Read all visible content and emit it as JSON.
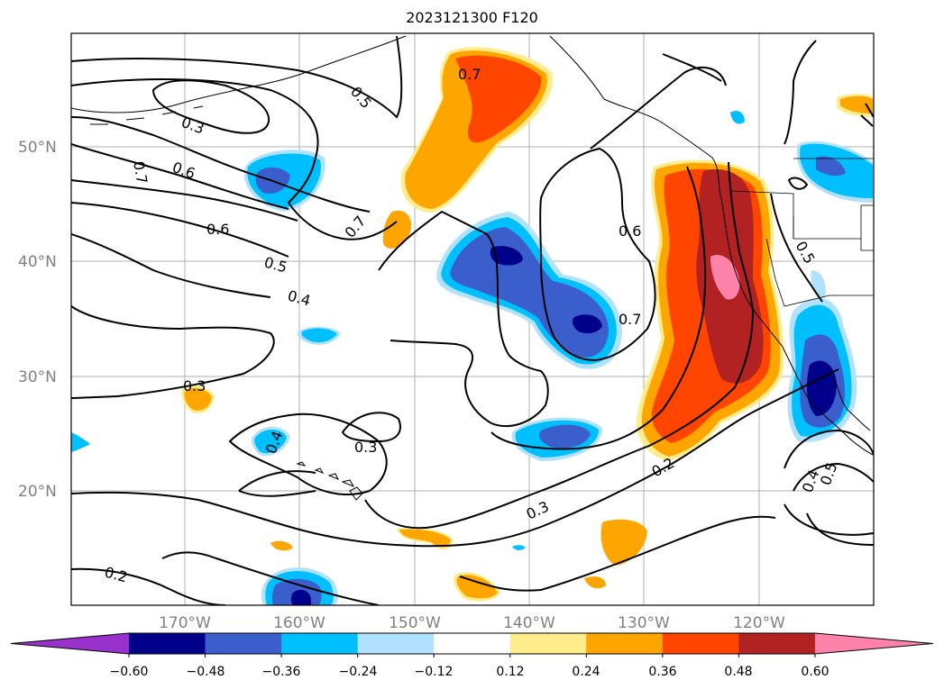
{
  "title": "2023121300 F120",
  "map": {
    "lat_labels": [
      "50°N",
      "40°N",
      "30°N",
      "20°N"
    ],
    "lon_labels": [
      "170°W",
      "160°W",
      "150°W",
      "140°W",
      "130°W",
      "120°W"
    ],
    "contour_labels": [
      "0.7",
      "0.5",
      "0.3",
      "0.7",
      "0.6",
      "0.6",
      "0.5",
      "0.4",
      "0.7",
      "0.6",
      "0.7",
      "0.5",
      "0.3",
      "0.4",
      "0.3",
      "0.2",
      "0.3",
      "0.2",
      "0.4",
      "0.5"
    ]
  },
  "colorbar": {
    "ticks": [
      "−0.60",
      "−0.48",
      "−0.36",
      "−0.24",
      "−0.12",
      "0.12",
      "0.24",
      "0.36",
      "0.48",
      "0.60"
    ],
    "colors": [
      "#9932cc",
      "#00008b",
      "#3a5fcd",
      "#00bfff",
      "#b0e2ff",
      "#ffffff",
      "#ffec8b",
      "#ffa500",
      "#ff4500",
      "#b22222",
      "#ff82ab"
    ]
  }
}
